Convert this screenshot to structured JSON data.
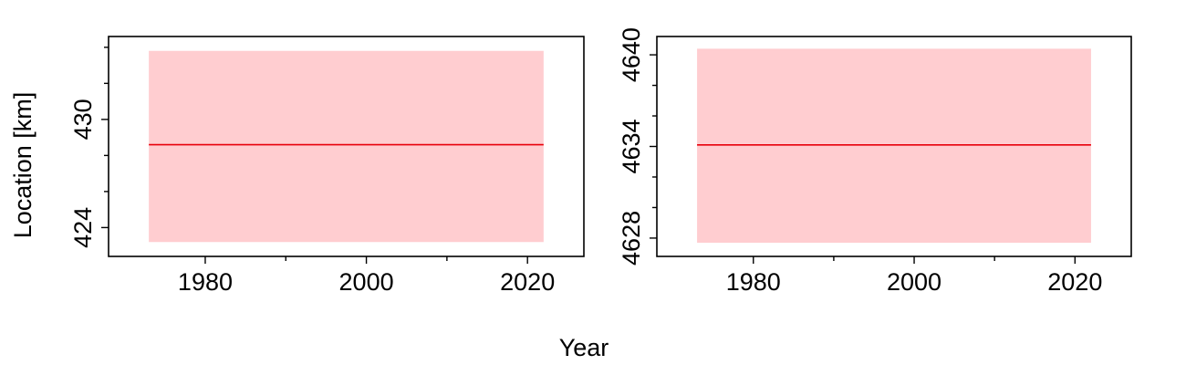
{
  "figure": {
    "xlabel": "Year",
    "ylabel": "Location [km]"
  },
  "colors": {
    "line": "#e8000b",
    "band": "#ffcdd0",
    "axis": "#000000"
  },
  "chart_data": [
    {
      "type": "line",
      "x": [
        1973,
        2022
      ],
      "series": [
        {
          "values": [
            428.6,
            428.6
          ],
          "band_lower": [
            423.2,
            423.2
          ],
          "band_upper": [
            433.8,
            433.8
          ],
          "color": "#e8000b"
        }
      ],
      "xlim": [
        1968,
        2027
      ],
      "ylim": [
        422.4,
        434.6
      ],
      "xticks_major": [
        1980,
        2000,
        2020
      ],
      "xticks_minor": [
        1990,
        2010
      ],
      "xtick_labels": [
        "1980",
        "2000",
        "2020"
      ],
      "yticks_major": [
        424,
        430
      ],
      "yticks_minor": [
        426,
        428,
        432,
        434
      ],
      "ytick_labels": [
        "424",
        "430"
      ],
      "grid": false,
      "ylabel": "Location [km]"
    },
    {
      "type": "line",
      "x": [
        1973,
        2022
      ],
      "series": [
        {
          "values": [
            4634.1,
            4634.1
          ],
          "band_lower": [
            4627.7,
            4627.7
          ],
          "band_upper": [
            4640.4,
            4640.4
          ],
          "color": "#e8000b"
        }
      ],
      "xlim": [
        1968,
        2027
      ],
      "ylim": [
        4626.8,
        4641.2
      ],
      "xticks_major": [
        1980,
        2000,
        2020
      ],
      "xticks_minor": [
        1990,
        2010
      ],
      "xtick_labels": [
        "1980",
        "2000",
        "2020"
      ],
      "yticks_major": [
        4628,
        4634,
        4640
      ],
      "yticks_minor": [
        4630,
        4632,
        4636,
        4638
      ],
      "ytick_labels": [
        "4628",
        "4634",
        "4640"
      ],
      "grid": false,
      "ylabel": ""
    }
  ]
}
